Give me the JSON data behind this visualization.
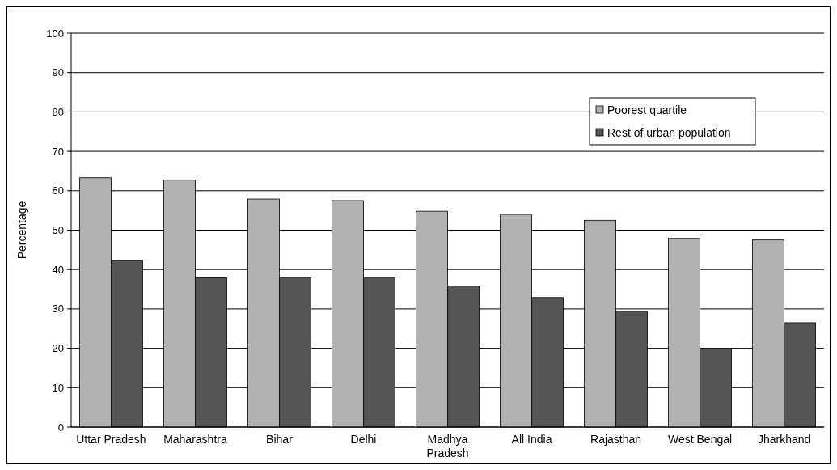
{
  "chart_data": {
    "type": "bar",
    "ylabel": "Percentage",
    "categories": [
      "Uttar Pradesh",
      "Maharashtra",
      "Bihar",
      "Delhi",
      "Madhya Pradesh",
      "All India",
      "Rajasthan",
      "West Bengal",
      "Jharkhand"
    ],
    "series": [
      {
        "name": "Poorest quartile",
        "color": "#b1b1b4",
        "values": [
          63.3,
          62.7,
          57.9,
          57.5,
          54.8,
          54,
          52.5,
          47.9,
          47.5
        ]
      },
      {
        "name": "Rest of urban population",
        "color": "#555558",
        "values": [
          42.3,
          37.9,
          38,
          38,
          35.8,
          32.9,
          29.4,
          19.8,
          26.5
        ]
      }
    ],
    "ylim": [
      0,
      100
    ],
    "yticks": [
      0,
      10,
      20,
      30,
      40,
      50,
      60,
      70,
      80,
      90,
      100
    ],
    "grid": "y",
    "legend": "top right"
  }
}
